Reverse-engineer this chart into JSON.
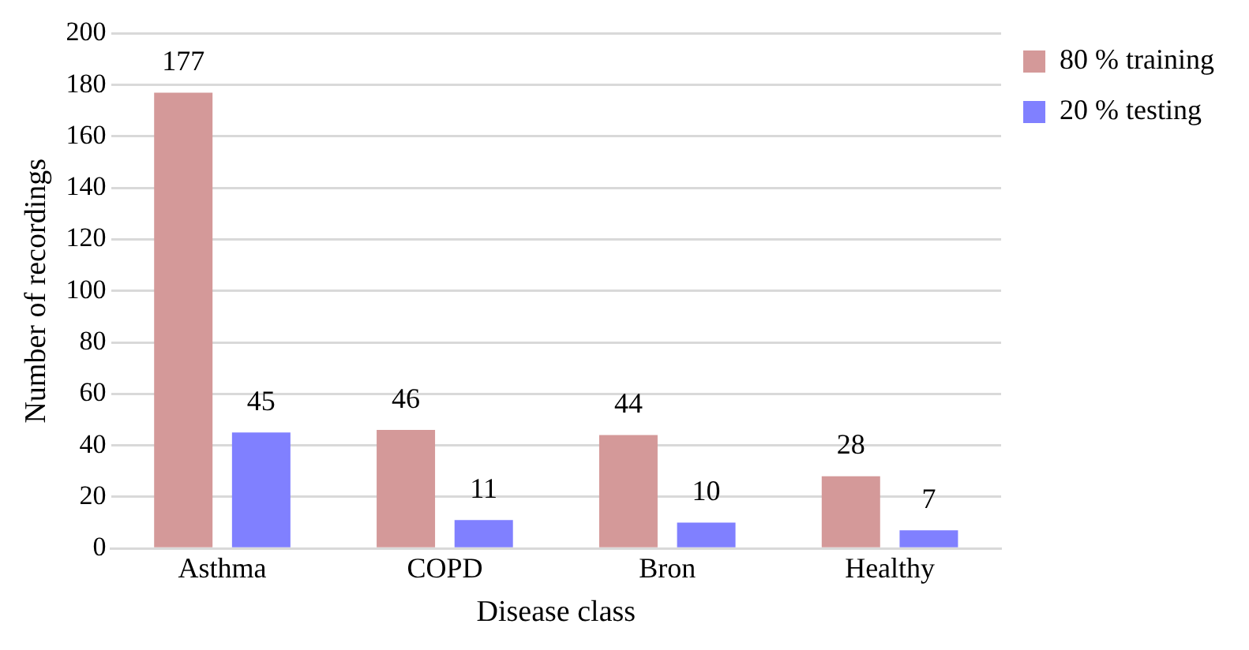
{
  "chart_data": {
    "type": "bar",
    "xlabel": "Disease class",
    "ylabel": "Number of recordings",
    "categories": [
      "Asthma",
      "COPD",
      "Bron",
      "Healthy"
    ],
    "series": [
      {
        "name": "80 % training",
        "color": "#d49999",
        "values": [
          177,
          46,
          44,
          28
        ]
      },
      {
        "name": "20 % testing",
        "color": "#8080ff",
        "values": [
          45,
          11,
          10,
          7
        ]
      }
    ],
    "ylim": [
      0,
      200
    ],
    "yticks": [
      0,
      20,
      40,
      60,
      80,
      100,
      120,
      140,
      160,
      180,
      200
    ],
    "grid": "y",
    "legend": "top right",
    "data_labels": true
  }
}
